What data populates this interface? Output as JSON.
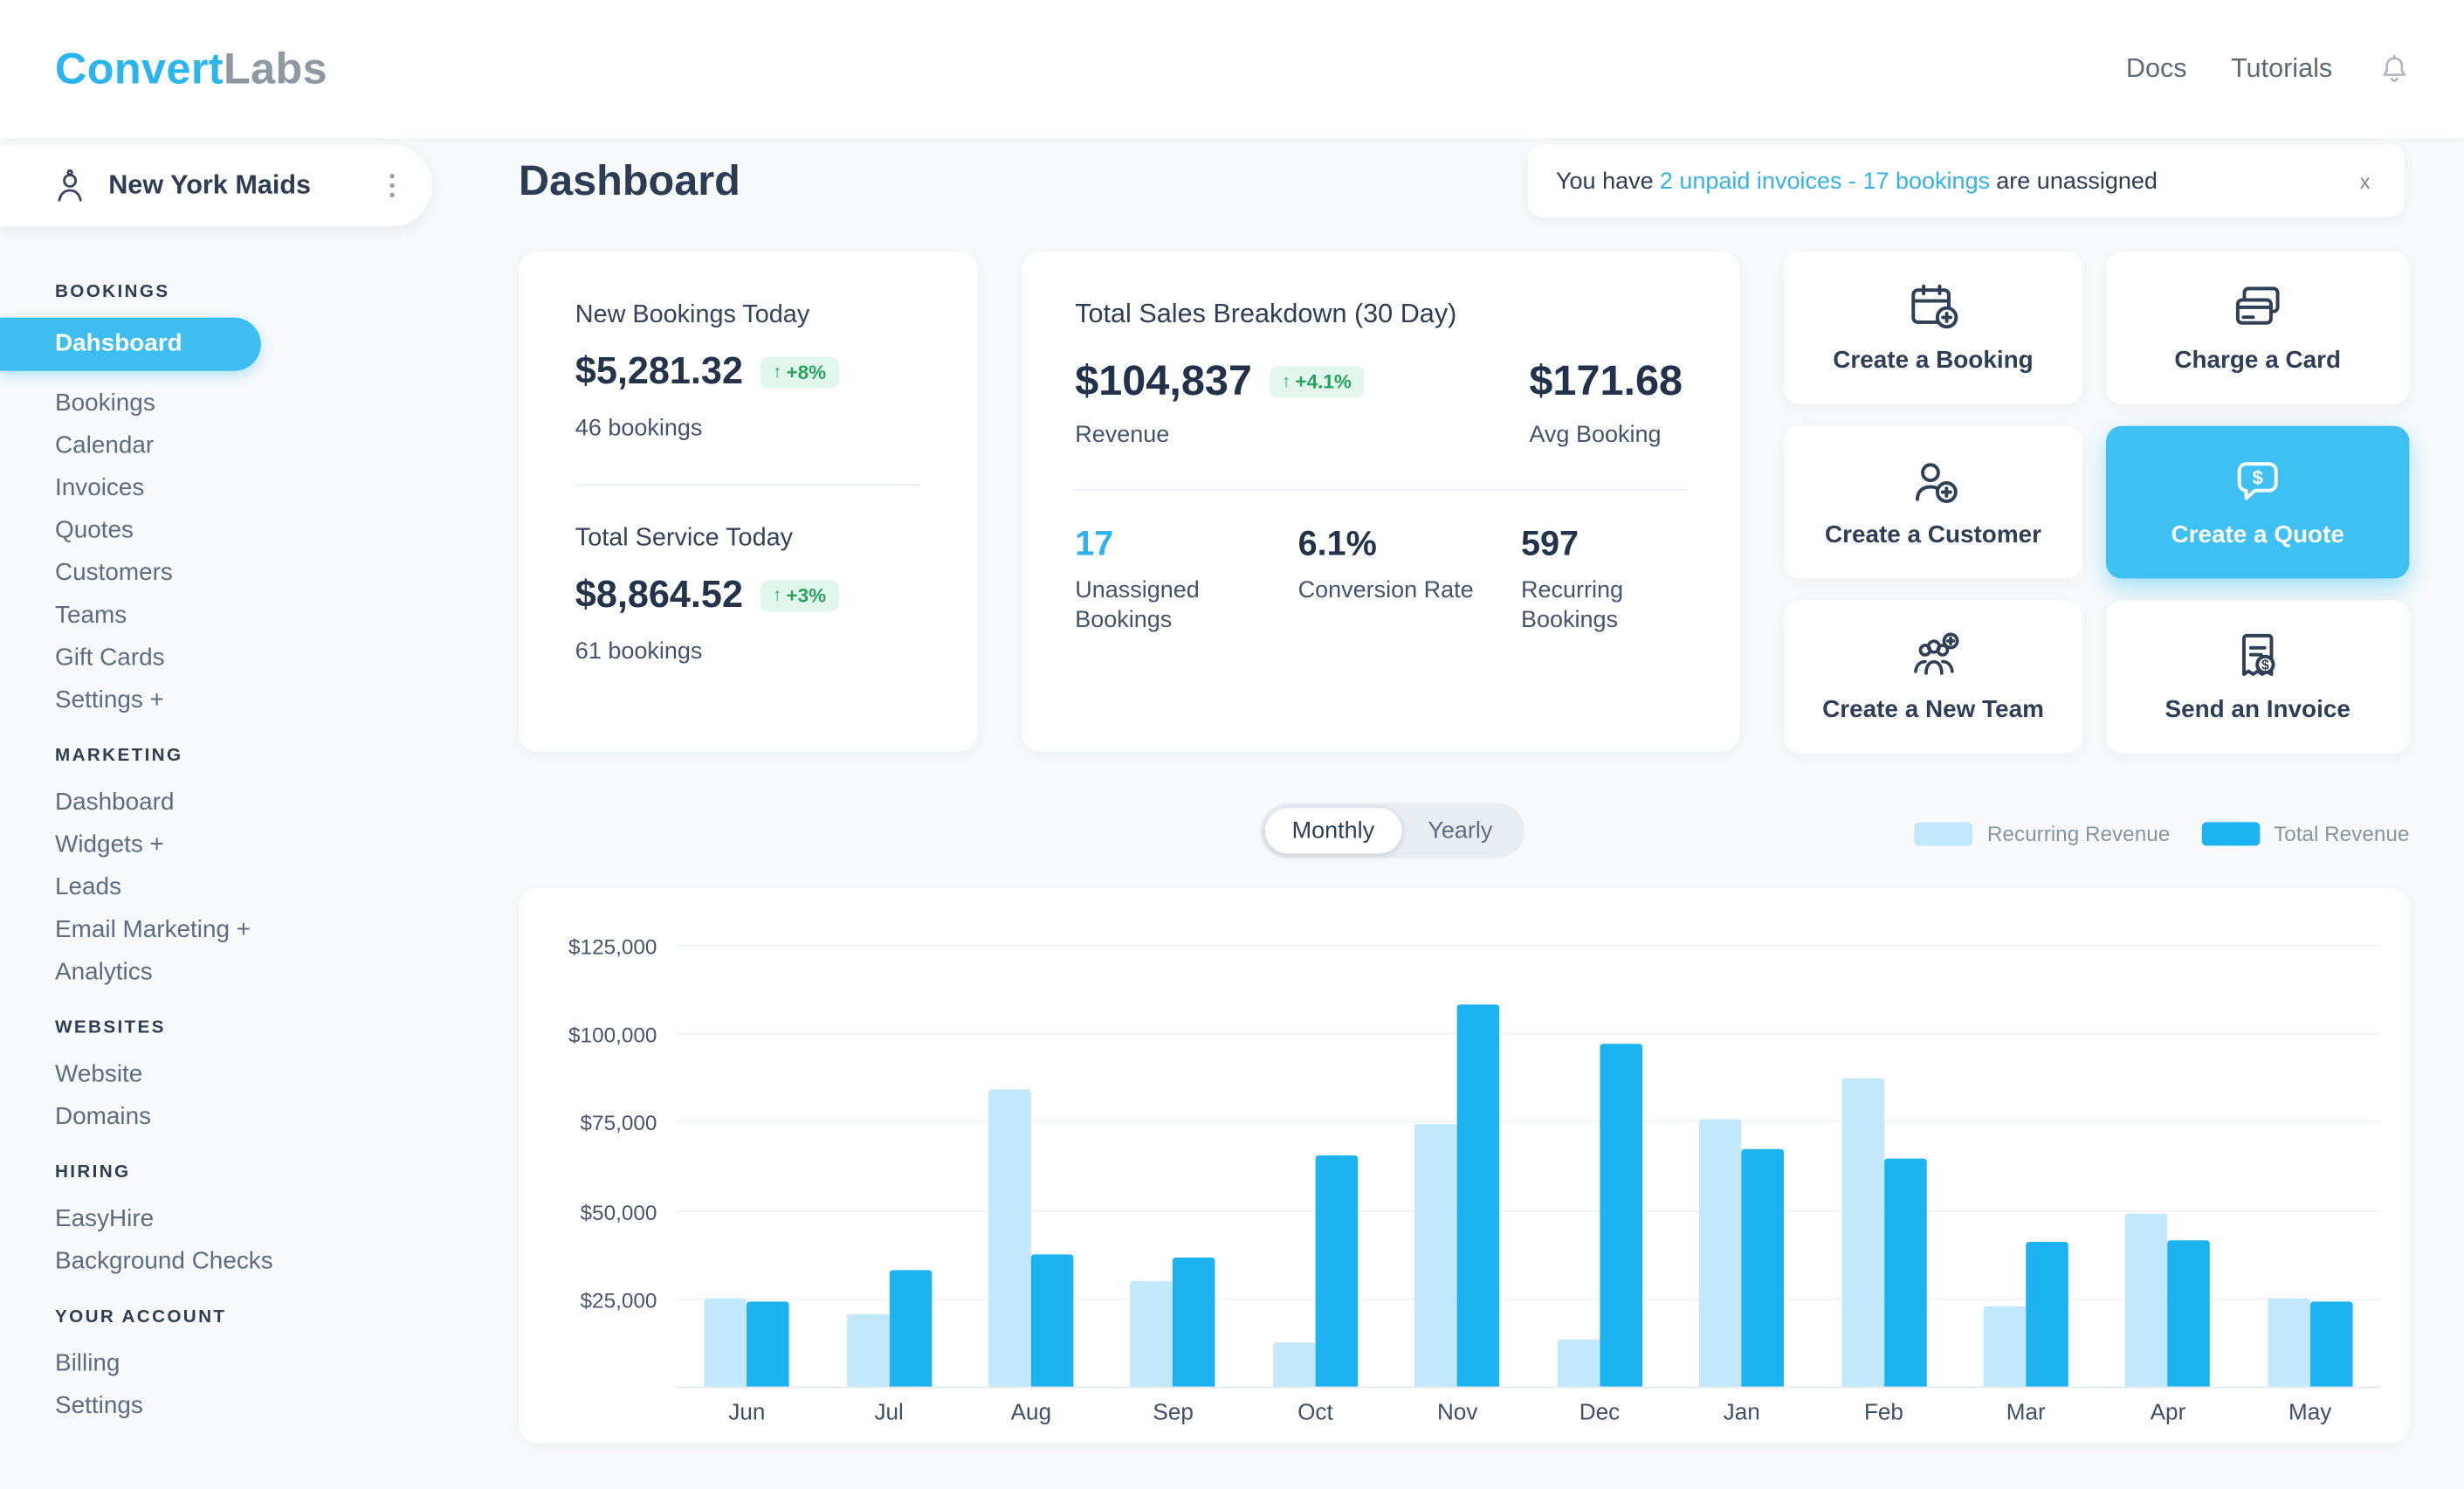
{
  "header": {
    "logo": {
      "part1": "Convert",
      "part2": "Labs"
    },
    "nav": [
      {
        "label": "Docs"
      },
      {
        "label": "Tutorials"
      }
    ],
    "icons": {
      "bell": "bell-icon"
    }
  },
  "sidebar": {
    "account": {
      "name": "New York Maids"
    },
    "sections": [
      {
        "title": "BOOKINGS",
        "items": [
          {
            "label": "Dahsboard",
            "active": true
          },
          {
            "label": "Bookings",
            "active": false
          },
          {
            "label": "Calendar",
            "active": false
          },
          {
            "label": "Invoices",
            "active": false
          },
          {
            "label": "Quotes",
            "active": false
          },
          {
            "label": "Customers",
            "active": false
          },
          {
            "label": "Teams",
            "active": false
          },
          {
            "label": "Gift Cards",
            "active": false
          },
          {
            "label": "Settings +",
            "active": false
          }
        ]
      },
      {
        "title": "MARKETING",
        "items": [
          {
            "label": "Dashboard",
            "active": false
          },
          {
            "label": "Widgets +",
            "active": false
          },
          {
            "label": "Leads",
            "active": false
          },
          {
            "label": "Email Marketing +",
            "active": false
          },
          {
            "label": "Analytics",
            "active": false
          }
        ]
      },
      {
        "title": "WEBSITES",
        "items": [
          {
            "label": "Website",
            "active": false
          },
          {
            "label": "Domains",
            "active": false
          }
        ]
      },
      {
        "title": "HIRING",
        "items": [
          {
            "label": "EasyHire",
            "active": false
          },
          {
            "label": "Background Checks",
            "active": false
          }
        ]
      },
      {
        "title": "YOUR ACCOUNT",
        "items": [
          {
            "label": "Billing",
            "active": false
          },
          {
            "label": "Settings",
            "active": false
          }
        ]
      }
    ]
  },
  "main": {
    "title": "Dashboard",
    "banner": {
      "prefix": "You have",
      "link": "2 unpaid invoices - 17 bookings",
      "suffix": "are unassigned",
      "close": "x"
    },
    "today_card": {
      "blocks": [
        {
          "title": "New Bookings Today",
          "value": "$5,281.32",
          "change": "+8%",
          "sub": "46 bookings"
        },
        {
          "title": "Total Service Today",
          "value": "$8,864.52",
          "change": "+3%",
          "sub": "61 bookings"
        }
      ]
    },
    "sales_card": {
      "title": "Total Sales Breakdown (30 Day)",
      "revenue": {
        "value": "$104,837",
        "change": "+4.1%",
        "label": "Revenue"
      },
      "avg_booking": {
        "value": "$171.68",
        "label": "Avg Booking"
      },
      "stats": [
        {
          "value": "17",
          "label": "Unassigned Bookings",
          "accent": true
        },
        {
          "value": "6.1%",
          "label": "Conversion Rate",
          "accent": false
        },
        {
          "value": "597",
          "label": "Recurring Bookings",
          "accent": false
        }
      ]
    },
    "actions": [
      {
        "label": "Create a Booking",
        "icon": "calendar-plus-icon",
        "primary": false
      },
      {
        "label": "Charge a Card",
        "icon": "credit-card-icon",
        "primary": false
      },
      {
        "label": "Create a Customer",
        "icon": "customer-plus-icon",
        "primary": false
      },
      {
        "label": "Create a Quote",
        "icon": "quote-dollar-icon",
        "primary": true
      },
      {
        "label": "Create a New Team",
        "icon": "team-plus-icon",
        "primary": false
      },
      {
        "label": "Send an Invoice",
        "icon": "invoice-dollar-icon",
        "primary": false
      }
    ],
    "chart_controls": {
      "toggle": [
        {
          "label": "Monthly",
          "active": true
        },
        {
          "label": "Yearly",
          "active": false
        }
      ],
      "legend": [
        {
          "label": "Recurring Revenue",
          "color": "#c3e8fb"
        },
        {
          "label": "Total Revenue",
          "color": "#1db3f0"
        }
      ]
    }
  },
  "colors": {
    "accent": "#3dbdf0",
    "link": "#34b2e8",
    "positive": "#25a35f",
    "navy": "#2c3c53"
  },
  "chart_data": {
    "type": "bar",
    "title": "",
    "xlabel": "",
    "ylabel": "",
    "categories": [
      "Jun",
      "Jul",
      "Aug",
      "Sep",
      "Oct",
      "Nov",
      "Dec",
      "Jan",
      "Feb",
      "Mar",
      "Apr",
      "May"
    ],
    "series": [
      {
        "name": "Recurring Revenue",
        "color": "#c3e8fb",
        "values": [
          25000,
          20500,
          84000,
          30000,
          12500,
          74500,
          13500,
          75500,
          87000,
          22500,
          49000,
          25000
        ]
      },
      {
        "name": "Total Revenue",
        "color": "#1db3f0",
        "values": [
          24000,
          33000,
          37500,
          36500,
          65500,
          108000,
          97000,
          67000,
          64500,
          41000,
          41500,
          24000
        ]
      }
    ],
    "ylim": [
      0,
      125000
    ],
    "yticks": [
      25000,
      50000,
      75000,
      100000,
      125000
    ],
    "ytick_labels": [
      "$25,000",
      "$50,000",
      "$75,000",
      "$100,000",
      "$125,000"
    ],
    "grid": true,
    "legend_position": "top-right",
    "period_selected": "Monthly"
  }
}
